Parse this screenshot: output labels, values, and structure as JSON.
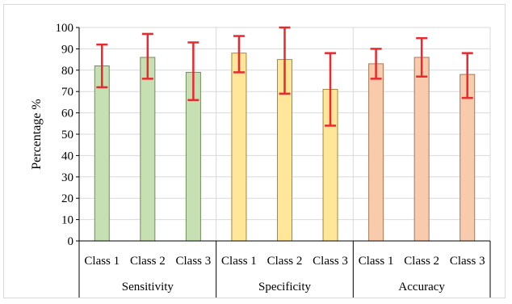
{
  "chart_data": {
    "type": "bar",
    "ylabel": "Percentage %",
    "ylim": [
      0,
      100
    ],
    "ytick_step": 10,
    "grid": true,
    "groups": [
      {
        "label": "Sensitivity",
        "color": "#c6e0b4",
        "border": "#6f8f5a",
        "bars": [
          {
            "category": "Class 1",
            "value": 82,
            "err_low": 72,
            "err_high": 92
          },
          {
            "category": "Class 2",
            "value": 86,
            "err_low": 76,
            "err_high": 97
          },
          {
            "category": "Class 3",
            "value": 79,
            "err_low": 66,
            "err_high": 93
          }
        ]
      },
      {
        "label": "Specificity",
        "color": "#ffe699",
        "border": "#a08a3e",
        "bars": [
          {
            "category": "Class 1",
            "value": 88,
            "err_low": 79,
            "err_high": 96
          },
          {
            "category": "Class 2",
            "value": 85,
            "err_low": 69,
            "err_high": 100
          },
          {
            "category": "Class 3",
            "value": 71,
            "err_low": 54,
            "err_high": 88
          }
        ]
      },
      {
        "label": "Accuracy",
        "color": "#f8cbad",
        "border": "#a8775a",
        "bars": [
          {
            "category": "Class 1",
            "value": 83,
            "err_low": 76,
            "err_high": 90
          },
          {
            "category": "Class 2",
            "value": 86,
            "err_low": 77,
            "err_high": 95
          },
          {
            "category": "Class 3",
            "value": 78,
            "err_low": 67,
            "err_high": 88
          }
        ]
      }
    ],
    "error_bar_color": "#e8292d",
    "gridline_color": "#d9d9d9"
  }
}
